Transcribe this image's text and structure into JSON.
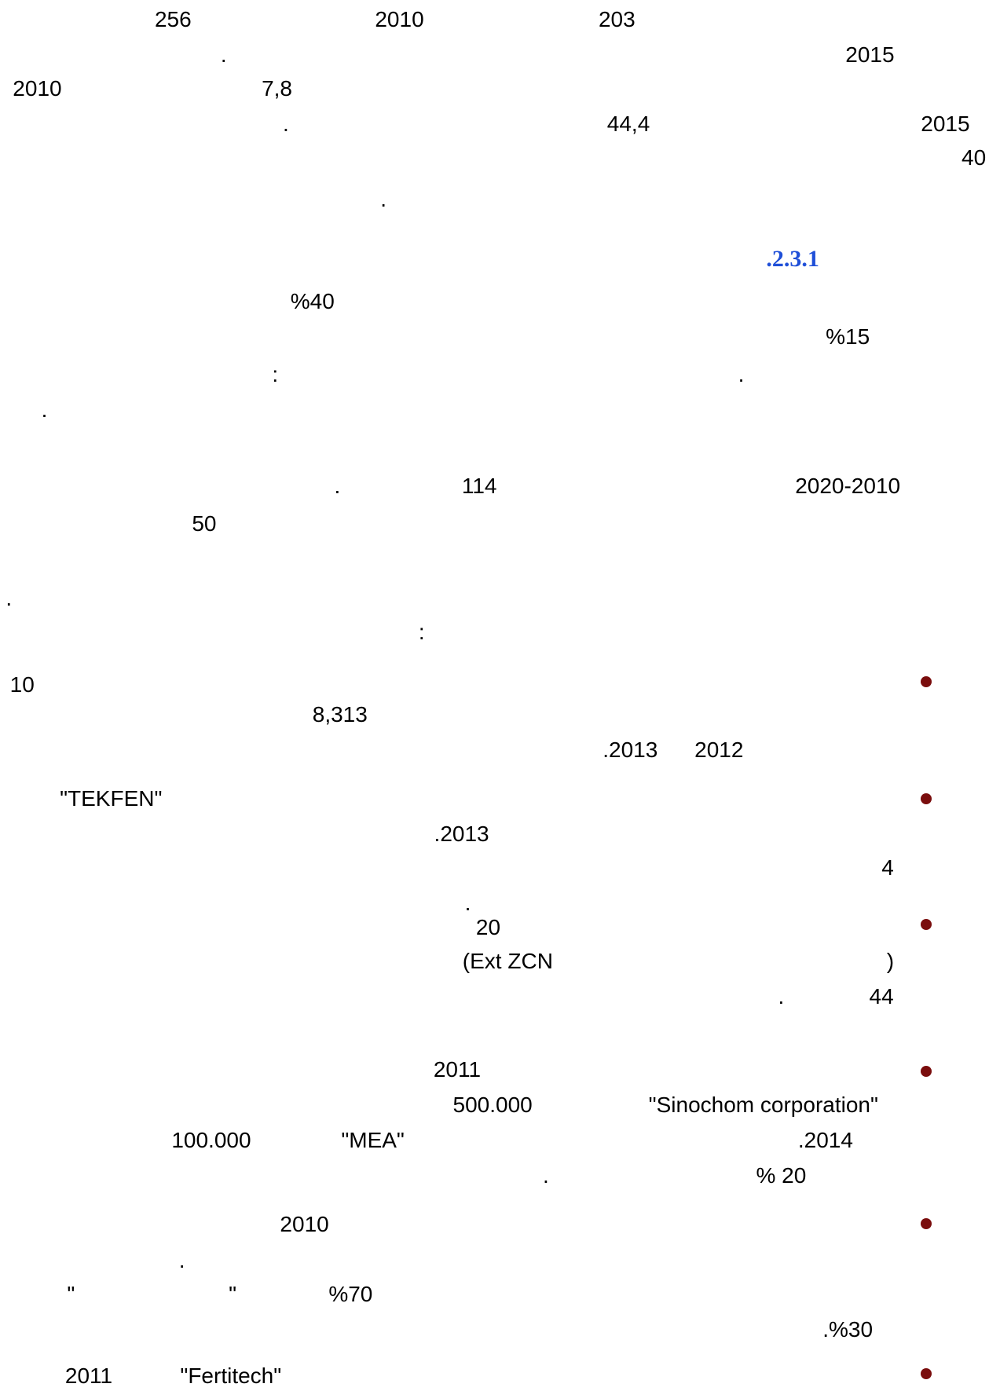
{
  "fragments": [
    {
      "text": "256"
    },
    {
      "text": "2010"
    },
    {
      "text": "203"
    },
    {
      "text": "."
    },
    {
      "text": "2015"
    },
    {
      "text": "2010"
    },
    {
      "text": "7,8"
    },
    {
      "text": "."
    },
    {
      "text": "44,4"
    },
    {
      "text": "2015"
    },
    {
      "text": "40"
    },
    {
      "text": "."
    },
    {
      "text": ".2.3.1"
    },
    {
      "text": "%40"
    },
    {
      "text": "%15"
    },
    {
      "text": ":"
    },
    {
      "text": "."
    },
    {
      "text": "."
    },
    {
      "text": "."
    },
    {
      "text": "114"
    },
    {
      "text": "2020-2010"
    },
    {
      "text": "50"
    },
    {
      "text": "."
    },
    {
      "text": ":"
    },
    {
      "text": "10"
    },
    {
      "text": "8,313"
    },
    {
      "text": ".2013"
    },
    {
      "text": "2012"
    },
    {
      "text": "\"TEKFEN\""
    },
    {
      "text": ".2013"
    },
    {
      "text": "4"
    },
    {
      "text": "."
    },
    {
      "text": "20"
    },
    {
      "text": "(Ext ZCN"
    },
    {
      "text": ")"
    },
    {
      "text": "."
    },
    {
      "text": "44"
    },
    {
      "text": "2011"
    },
    {
      "text": "500.000"
    },
    {
      "text": "\"Sinochom corporation\""
    },
    {
      "text": "100.000"
    },
    {
      "text": "\"MEA\""
    },
    {
      "text": ".2014"
    },
    {
      "text": "."
    },
    {
      "text": "% 20"
    },
    {
      "text": "2010"
    },
    {
      "text": "."
    },
    {
      "text": "\""
    },
    {
      "text": "\""
    },
    {
      "text": "%70"
    },
    {
      "text": ".%30"
    },
    {
      "text": "2011"
    },
    {
      "text": "\"Fertitech\""
    }
  ]
}
